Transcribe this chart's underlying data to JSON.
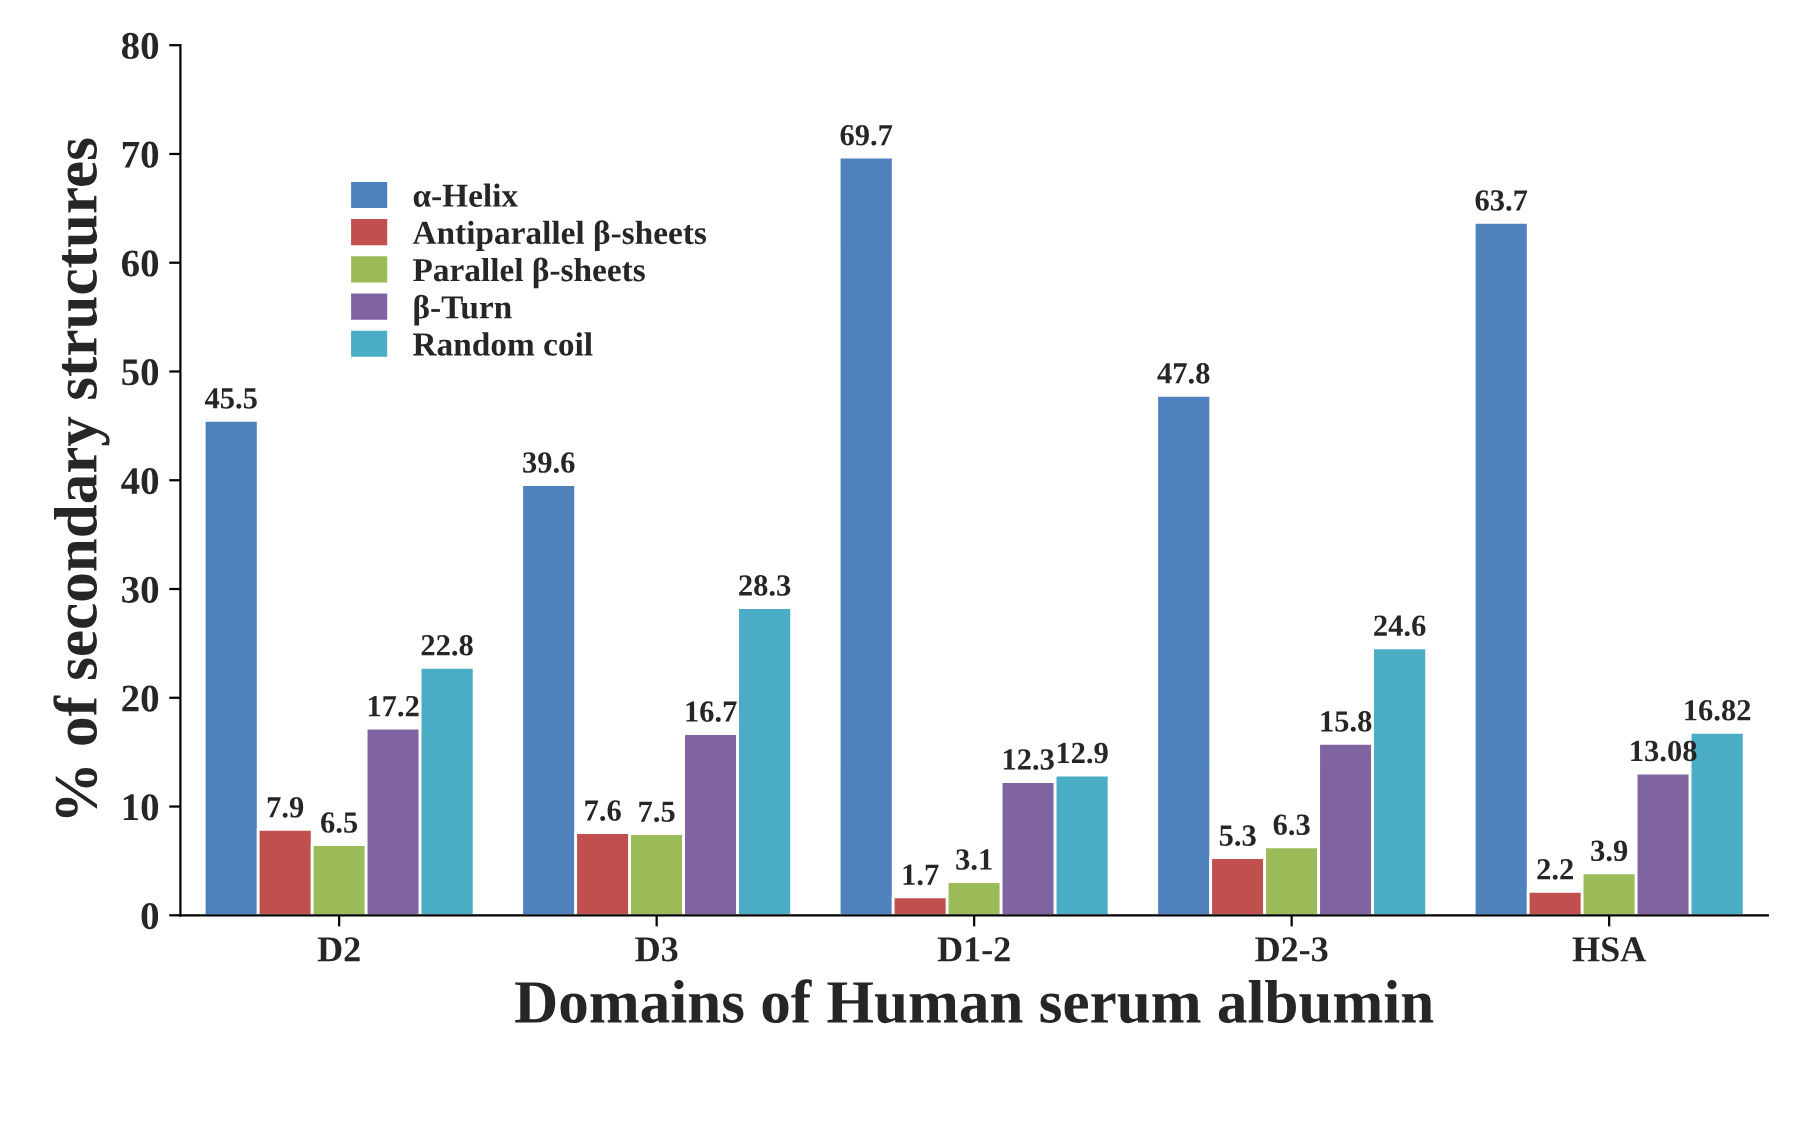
{
  "chart_data": {
    "type": "bar",
    "xlabel": "Domains of Human serum albumin",
    "ylabel": "% of secondary structures",
    "categories": [
      "D2",
      "D3",
      "D1-2",
      "D2-3",
      "HSA"
    ],
    "series": [
      {
        "name": "α-Helix",
        "color": "#4f81bd",
        "values": [
          45.5,
          39.6,
          69.7,
          47.8,
          63.7
        ]
      },
      {
        "name": "Antiparallel β-sheets",
        "color": "#c0504d",
        "values": [
          7.9,
          7.6,
          1.7,
          5.3,
          2.2
        ]
      },
      {
        "name": "Parallel β-sheets",
        "color": "#9bbb59",
        "values": [
          6.5,
          7.5,
          3.1,
          6.3,
          3.9
        ]
      },
      {
        "name": "β-Turn",
        "color": "#8064a2",
        "values": [
          17.2,
          16.7,
          12.3,
          15.8,
          13.08
        ]
      },
      {
        "name": "Random coil",
        "color": "#4bacc6",
        "values": [
          22.8,
          28.3,
          12.9,
          24.6,
          16.82
        ]
      }
    ],
    "ylim": [
      0,
      80
    ],
    "yticks": [
      0,
      10,
      20,
      30,
      40,
      50,
      60,
      70,
      80
    ],
    "data_labels": true,
    "grid": false,
    "legend": "top left"
  }
}
